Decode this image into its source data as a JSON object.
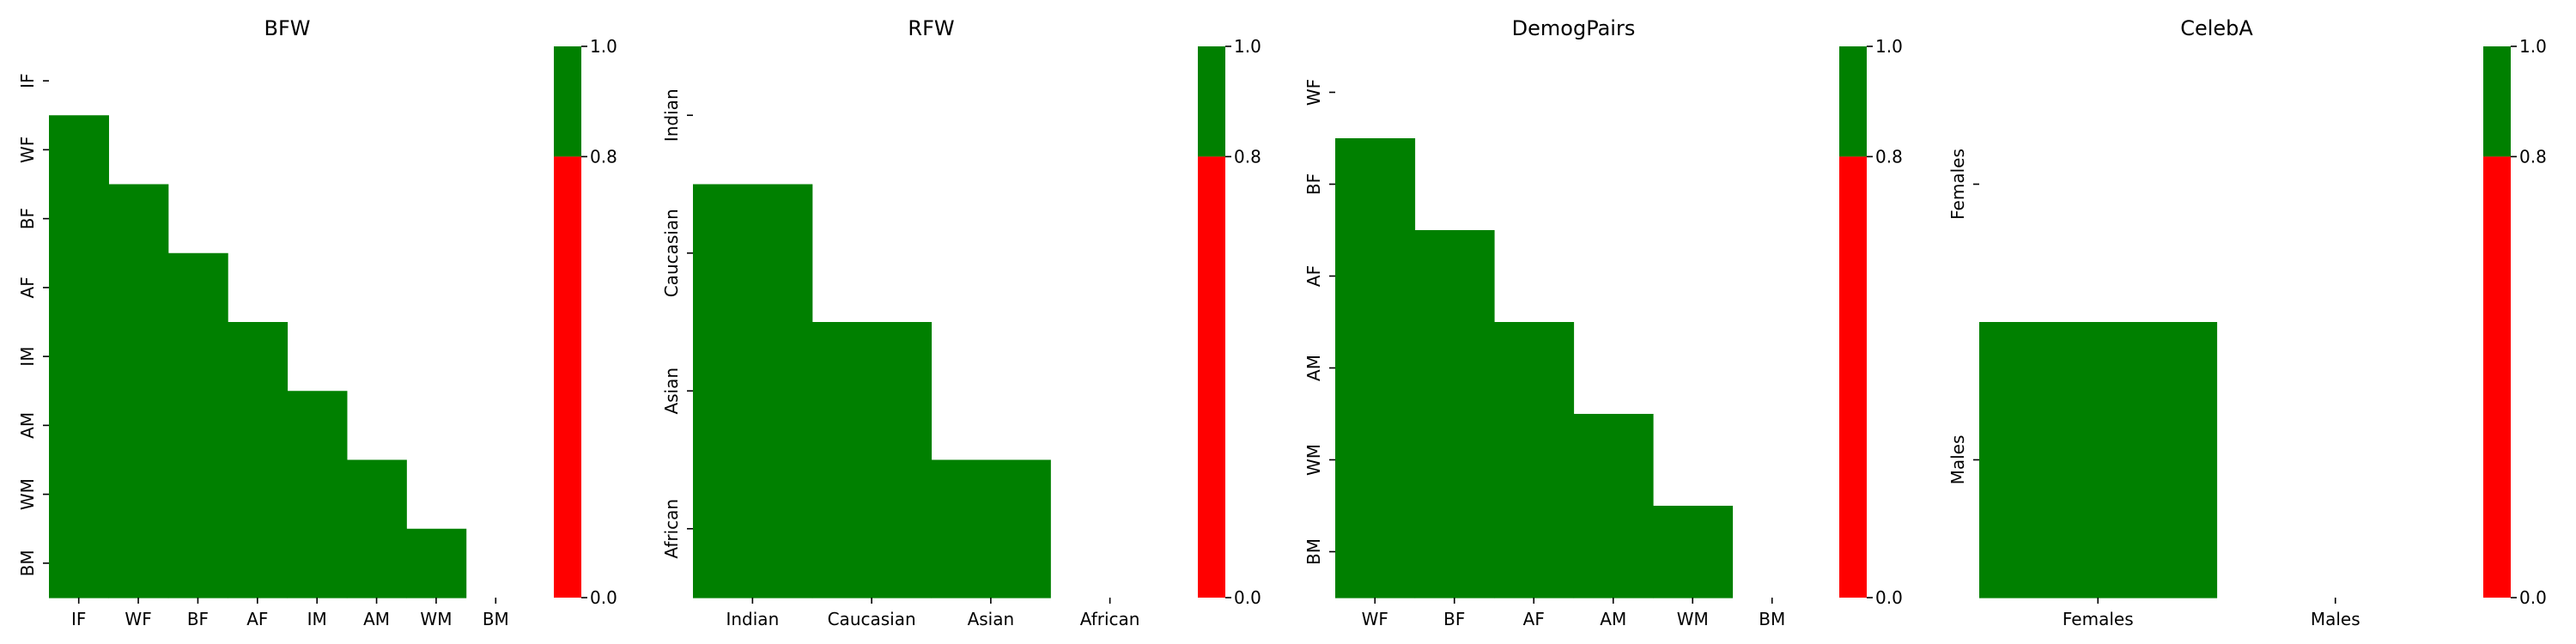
{
  "colors": {
    "below": "#ff0000",
    "above": "#008000",
    "tick": "#000000"
  },
  "chart_data": [
    {
      "type": "heatmap",
      "title": "BFW",
      "categories": [
        "IF",
        "WF",
        "BF",
        "AF",
        "IM",
        "AM",
        "WM",
        "BM"
      ],
      "mask": "upper-triangle-including-diagonal",
      "cell_value_class": "above_threshold",
      "colorbar": {
        "ticks": [
          "0.0",
          "0.8",
          "1.0"
        ],
        "range": [
          0.0,
          1.0
        ],
        "threshold": 0.8
      }
    },
    {
      "type": "heatmap",
      "title": "RFW",
      "categories": [
        "Indian",
        "Caucasian",
        "Asian",
        "African"
      ],
      "mask": "upper-triangle-including-diagonal",
      "cell_value_class": "above_threshold",
      "colorbar": {
        "ticks": [
          "0.0",
          "0.8",
          "1.0"
        ],
        "range": [
          0.0,
          1.0
        ],
        "threshold": 0.8
      }
    },
    {
      "type": "heatmap",
      "title": "DemogPairs",
      "categories": [
        "WF",
        "BF",
        "AF",
        "AM",
        "WM",
        "BM"
      ],
      "mask": "upper-triangle-including-diagonal",
      "cell_value_class": "above_threshold",
      "colorbar": {
        "ticks": [
          "0.0",
          "0.8",
          "1.0"
        ],
        "range": [
          0.0,
          1.0
        ],
        "threshold": 0.8
      }
    },
    {
      "type": "heatmap",
      "title": "CelebA",
      "categories": [
        "Females",
        "Males"
      ],
      "mask": "upper-triangle-including-diagonal",
      "cell_value_class": "above_threshold",
      "colorbar": {
        "ticks": [
          "0.0",
          "0.8",
          "1.0"
        ],
        "range": [
          0.0,
          1.0
        ],
        "threshold": 0.8
      }
    }
  ]
}
